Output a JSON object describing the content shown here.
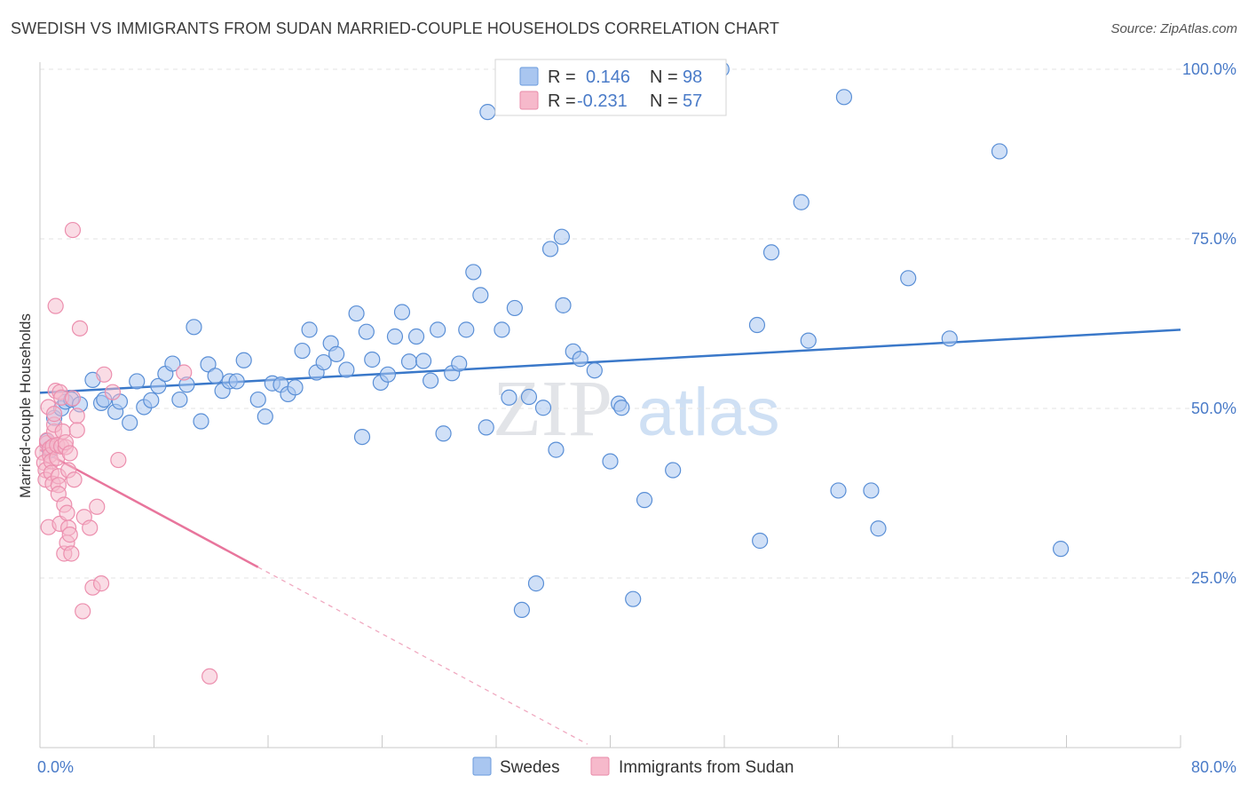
{
  "header": {
    "title": "SWEDISH VS IMMIGRANTS FROM SUDAN MARRIED-COUPLE HOUSEHOLDS CORRELATION CHART",
    "source": "Source: ZipAtlas.com"
  },
  "watermark": {
    "zip": "ZIP",
    "atlas": "atlas"
  },
  "legend_top": {
    "rows": [
      {
        "r_label": "R =",
        "r_value": "0.146",
        "n_label": "N =",
        "n_value": "98",
        "color": "#a9c6f0"
      },
      {
        "r_label": "R =",
        "r_value": "-0.231",
        "n_label": "N =",
        "n_value": "57",
        "color": "#f6b9cb"
      }
    ]
  },
  "legend_bottom": {
    "items": [
      {
        "label": "Swedes",
        "color": "#a9c6f0"
      },
      {
        "label": "Immigrants from Sudan",
        "color": "#f6b9cb"
      }
    ]
  },
  "chart_data": {
    "type": "scatter",
    "title": "SWEDISH VS IMMIGRANTS FROM SUDAN MARRIED-COUPLE HOUSEHOLDS CORRELATION CHART",
    "xlabel": "",
    "ylabel": "Married-couple Households",
    "xlim": [
      0,
      80
    ],
    "ylim": [
      0,
      105
    ],
    "x_tick_labels": [
      "0.0%",
      "80.0%"
    ],
    "y_ticks": [
      25,
      50,
      75,
      100
    ],
    "y_tick_labels": [
      "25.0%",
      "50.0%",
      "75.0%",
      "100.0%"
    ],
    "grid": true,
    "legend_position": "top-center",
    "colors": {
      "swedes": "#3a78c9",
      "sudan": "#e8759c",
      "swedes_fill": "#a9c6f0",
      "sudan_fill": "#f6b9cb"
    },
    "series": [
      {
        "name": "Swedes",
        "trend": {
          "x": [
            0,
            80
          ],
          "y": [
            52.3,
            61.6
          ],
          "style": "solid"
        },
        "points": [
          [
            1.0,
            48.6
          ],
          [
            1.5,
            50.0
          ],
          [
            1.8,
            51.0
          ],
          [
            2.2,
            51.3
          ],
          [
            2.8,
            50.6
          ],
          [
            3.7,
            54.2
          ],
          [
            4.3,
            50.8
          ],
          [
            4.5,
            51.3
          ],
          [
            5.3,
            49.5
          ],
          [
            5.6,
            51.0
          ],
          [
            6.3,
            47.9
          ],
          [
            6.8,
            54.0
          ],
          [
            7.3,
            50.2
          ],
          [
            7.8,
            51.2
          ],
          [
            8.3,
            53.3
          ],
          [
            8.8,
            55.1
          ],
          [
            9.3,
            56.6
          ],
          [
            9.8,
            51.3
          ],
          [
            10.3,
            53.5
          ],
          [
            10.8,
            62.0
          ],
          [
            11.3,
            48.1
          ],
          [
            11.8,
            56.5
          ],
          [
            12.3,
            54.8
          ],
          [
            12.8,
            52.6
          ],
          [
            13.3,
            54.0
          ],
          [
            13.8,
            54.0
          ],
          [
            14.3,
            57.1
          ],
          [
            15.3,
            51.3
          ],
          [
            15.8,
            48.8
          ],
          [
            16.3,
            53.7
          ],
          [
            16.9,
            53.5
          ],
          [
            17.4,
            52.1
          ],
          [
            17.9,
            53.1
          ],
          [
            18.4,
            58.5
          ],
          [
            18.9,
            61.6
          ],
          [
            19.4,
            55.3
          ],
          [
            19.9,
            56.8
          ],
          [
            20.4,
            59.6
          ],
          [
            20.8,
            58.0
          ],
          [
            21.5,
            55.7
          ],
          [
            22.2,
            64.0
          ],
          [
            22.6,
            45.8
          ],
          [
            22.9,
            61.3
          ],
          [
            23.3,
            57.2
          ],
          [
            23.9,
            53.8
          ],
          [
            24.4,
            55.0
          ],
          [
            24.9,
            60.6
          ],
          [
            25.4,
            64.2
          ],
          [
            25.9,
            56.9
          ],
          [
            26.4,
            60.6
          ],
          [
            26.9,
            57.0
          ],
          [
            27.4,
            54.1
          ],
          [
            27.9,
            61.6
          ],
          [
            28.3,
            46.3
          ],
          [
            28.9,
            55.2
          ],
          [
            29.4,
            56.6
          ],
          [
            29.9,
            61.6
          ],
          [
            30.4,
            70.1
          ],
          [
            30.9,
            66.7
          ],
          [
            31.3,
            47.2
          ],
          [
            31.4,
            93.7
          ],
          [
            32.4,
            61.6
          ],
          [
            32.9,
            51.6
          ],
          [
            33.3,
            64.8
          ],
          [
            33.8,
            20.3
          ],
          [
            34.3,
            51.7
          ],
          [
            34.8,
            24.2
          ],
          [
            35.3,
            50.1
          ],
          [
            35.8,
            73.5
          ],
          [
            36.2,
            43.9
          ],
          [
            36.6,
            75.3
          ],
          [
            36.7,
            65.2
          ],
          [
            37.4,
            58.4
          ],
          [
            37.9,
            57.3
          ],
          [
            38.9,
            55.6
          ],
          [
            40.0,
            42.2
          ],
          [
            40.6,
            50.7
          ],
          [
            40.8,
            50.1
          ],
          [
            41.6,
            21.9
          ],
          [
            42.4,
            36.5
          ],
          [
            43.3,
            100.0
          ],
          [
            44.4,
            40.9
          ],
          [
            47.8,
            100.0
          ],
          [
            50.3,
            62.3
          ],
          [
            50.5,
            30.5
          ],
          [
            51.3,
            73.0
          ],
          [
            53.4,
            80.4
          ],
          [
            53.9,
            60.0
          ],
          [
            56.0,
            37.9
          ],
          [
            56.4,
            95.9
          ],
          [
            58.3,
            37.9
          ],
          [
            58.8,
            32.3
          ],
          [
            60.9,
            69.2
          ],
          [
            63.8,
            60.3
          ],
          [
            67.3,
            87.9
          ],
          [
            71.6,
            29.3
          ],
          [
            0.5,
            45.2
          ],
          [
            0.7,
            43.8
          ]
        ]
      },
      {
        "name": "Immigrants from Sudan",
        "trend": {
          "x": [
            0,
            15.3
          ],
          "y": [
            43.9,
            26.6
          ],
          "style": "solid",
          "extended": {
            "x": [
              15.3,
              38.4
            ],
            "y": [
              26.6,
              0.5
            ],
            "style": "dashed"
          }
        },
        "points": [
          [
            0.2,
            43.5
          ],
          [
            0.3,
            42.0
          ],
          [
            0.4,
            40.9
          ],
          [
            0.4,
            39.5
          ],
          [
            0.5,
            44.9
          ],
          [
            0.5,
            45.3
          ],
          [
            0.6,
            50.2
          ],
          [
            0.6,
            32.5
          ],
          [
            0.7,
            44.1
          ],
          [
            0.7,
            43.1
          ],
          [
            0.8,
            42.2
          ],
          [
            0.8,
            40.5
          ],
          [
            0.9,
            38.9
          ],
          [
            0.9,
            44.4
          ],
          [
            1.0,
            46.6
          ],
          [
            1.0,
            47.6
          ],
          [
            1.0,
            49.2
          ],
          [
            1.1,
            52.6
          ],
          [
            1.1,
            65.1
          ],
          [
            1.2,
            42.7
          ],
          [
            1.2,
            44.6
          ],
          [
            1.3,
            40.0
          ],
          [
            1.3,
            38.7
          ],
          [
            1.3,
            37.4
          ],
          [
            1.4,
            33.0
          ],
          [
            1.4,
            52.4
          ],
          [
            1.5,
            51.6
          ],
          [
            1.5,
            44.4
          ],
          [
            1.6,
            46.6
          ],
          [
            1.7,
            35.8
          ],
          [
            1.7,
            28.6
          ],
          [
            1.8,
            44.3
          ],
          [
            1.8,
            45.0
          ],
          [
            1.9,
            34.6
          ],
          [
            1.9,
            30.2
          ],
          [
            2.0,
            40.9
          ],
          [
            2.0,
            32.4
          ],
          [
            2.1,
            31.4
          ],
          [
            2.1,
            43.4
          ],
          [
            2.2,
            28.6
          ],
          [
            2.3,
            51.5
          ],
          [
            2.3,
            76.3
          ],
          [
            2.4,
            39.5
          ],
          [
            2.6,
            48.9
          ],
          [
            2.6,
            46.8
          ],
          [
            2.8,
            61.8
          ],
          [
            3.0,
            20.1
          ],
          [
            3.1,
            34.0
          ],
          [
            3.5,
            32.4
          ],
          [
            3.7,
            23.6
          ],
          [
            4.0,
            35.5
          ],
          [
            4.3,
            24.2
          ],
          [
            4.5,
            55.0
          ],
          [
            5.1,
            52.4
          ],
          [
            5.5,
            42.4
          ],
          [
            10.1,
            55.3
          ],
          [
            11.9,
            10.5
          ]
        ]
      }
    ]
  }
}
